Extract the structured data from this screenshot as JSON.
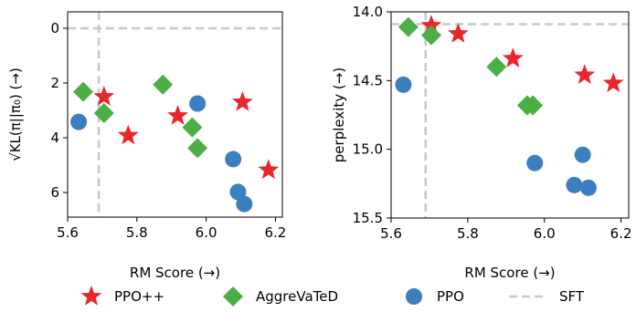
{
  "chart_data": [
    {
      "type": "scatter",
      "xlabel": "RM Score (→)",
      "ylabel": "√KL(π||π₀) (→)",
      "xlim": [
        5.6,
        6.22
      ],
      "ylim": [
        6.9,
        -0.6
      ],
      "y_inverted": true,
      "xticks": [
        "5.6",
        "5.8",
        "6.0",
        "6.2"
      ],
      "yticks": [
        "0",
        "2",
        "4",
        "6"
      ],
      "xtick_values": [
        5.6,
        5.8,
        6.0,
        6.2
      ],
      "ytick_values": [
        0,
        2,
        4,
        6
      ],
      "sft": {
        "x": 5.69,
        "y": 0.0
      },
      "series": [
        {
          "name": "PPO++",
          "marker": "star",
          "points": [
            [
              5.705,
              2.5
            ],
            [
              5.775,
              3.92
            ],
            [
              5.918,
              3.2
            ],
            [
              6.105,
              2.7
            ],
            [
              6.18,
              5.18
            ]
          ]
        },
        {
          "name": "AggreVaTeD",
          "marker": "diamond",
          "points": [
            [
              5.645,
              2.32
            ],
            [
              5.705,
              3.1
            ],
            [
              5.875,
              2.06
            ],
            [
              5.96,
              3.62
            ],
            [
              5.975,
              4.38
            ]
          ]
        },
        {
          "name": "PPO",
          "marker": "circle",
          "points": [
            [
              5.632,
              3.42
            ],
            [
              5.975,
              2.75
            ],
            [
              6.078,
              4.78
            ],
            [
              6.092,
              5.98
            ],
            [
              6.11,
              6.42
            ]
          ]
        }
      ]
    },
    {
      "type": "scatter",
      "xlabel": "RM Score (→)",
      "ylabel": "perplexity (→)",
      "xlim": [
        5.6,
        6.22
      ],
      "ylim": [
        15.5,
        14.0
      ],
      "y_inverted": true,
      "xticks": [
        "5.6",
        "5.8",
        "6.0",
        "6.2"
      ],
      "yticks": [
        "14.0",
        "14.5",
        "15.0",
        "15.5"
      ],
      "xtick_values": [
        5.6,
        5.8,
        6.0,
        6.2
      ],
      "ytick_values": [
        14.0,
        14.5,
        15.0,
        15.5
      ],
      "sft": {
        "x": 5.69,
        "y": 14.09
      },
      "series": [
        {
          "name": "PPO++",
          "marker": "star",
          "points": [
            [
              5.705,
              14.1
            ],
            [
              5.775,
              14.16
            ],
            [
              5.918,
              14.34
            ],
            [
              6.105,
              14.46
            ],
            [
              6.18,
              14.52
            ]
          ]
        },
        {
          "name": "AggreVaTeD",
          "marker": "diamond",
          "points": [
            [
              5.645,
              14.11
            ],
            [
              5.705,
              14.17
            ],
            [
              5.875,
              14.4
            ],
            [
              5.955,
              14.68
            ],
            [
              5.97,
              14.68
            ]
          ]
        },
        {
          "name": "PPO",
          "marker": "circle",
          "points": [
            [
              5.632,
              14.53
            ],
            [
              5.975,
              15.1
            ],
            [
              6.078,
              15.26
            ],
            [
              6.1,
              15.04
            ],
            [
              6.115,
              15.28
            ]
          ]
        }
      ]
    }
  ],
  "legend": {
    "placement": "bottom",
    "items": [
      {
        "label": "PPO++",
        "marker": "star",
        "color": "#e8262b"
      },
      {
        "label": "AggreVaTeD",
        "marker": "diamond",
        "color": "#4caf45"
      },
      {
        "label": "PPO",
        "marker": "circle",
        "color": "#3c7fbf"
      },
      {
        "label": "SFT",
        "marker": "dashed-line",
        "color": "#c8c8c8"
      }
    ]
  },
  "colors": {
    "PPO++": "#e8262b",
    "AggreVaTeD": "#4caf45",
    "PPO": "#3c7fbf",
    "SFT": "#c8c8c8"
  }
}
